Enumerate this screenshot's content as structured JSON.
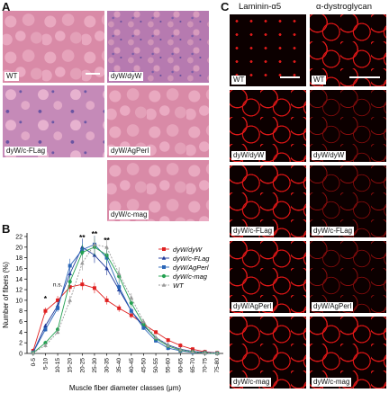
{
  "panels": {
    "A": {
      "letter": "A",
      "tiles": [
        {
          "label": "WT",
          "style": "normal"
        },
        {
          "label": "dyW/dyW",
          "style": "inflamed"
        },
        {
          "label": "dyW/c-FLag",
          "style": "fibrotic"
        },
        {
          "label": "dyW/AgPerl",
          "style": "normal"
        },
        {
          "label": "dyW/c-mag",
          "style": "normal"
        }
      ]
    },
    "B": {
      "letter": "B",
      "significance": [
        "*",
        "n.s.",
        "**",
        "**",
        "**"
      ]
    },
    "C": {
      "letter": "C",
      "col_headers": [
        "Laminin-α5",
        "α-dystroglycan"
      ],
      "rows": [
        {
          "label": "WT"
        },
        {
          "label": "dyW/dyW"
        },
        {
          "label": "dyW/c-FLag"
        },
        {
          "label": "dyW/AgPerl"
        },
        {
          "label": "dyW/c-mag"
        }
      ]
    }
  },
  "chart_data": {
    "type": "line",
    "ylabel": "Number of fibers (%)",
    "xlabel": "Muscle fiber diameter classes (μm)",
    "ylim": [
      0,
      22
    ],
    "yticks": [
      0,
      2,
      4,
      6,
      8,
      10,
      12,
      14,
      16,
      18,
      20,
      22
    ],
    "categories": [
      "0-5",
      "5-10",
      "10-15",
      "15-20",
      "20-25",
      "25-30",
      "30-35",
      "35-40",
      "40-45",
      "45-50",
      "50-55",
      "55-60",
      "60-65",
      "65-70",
      "70-75",
      "75-80"
    ],
    "legend_position": "top-right",
    "series": [
      {
        "name": "dyW/dyW",
        "color": "#e02020",
        "marker": "square",
        "values": [
          0.5,
          8.0,
          10.0,
          12.5,
          13.0,
          12.3,
          10.0,
          8.5,
          7.2,
          5.5,
          4.0,
          2.5,
          1.5,
          0.8,
          0.3,
          0.1
        ]
      },
      {
        "name": "dyW/c-FLag",
        "color": "#1f3a9a",
        "marker": "triangle",
        "values": [
          0.2,
          5.2,
          9.0,
          15.0,
          20.0,
          18.5,
          16.0,
          12.0,
          8.0,
          5.2,
          3.0,
          1.6,
          0.8,
          0.4,
          0.2,
          0.1
        ]
      },
      {
        "name": "dyW/AgPerl",
        "color": "#2a66b8",
        "marker": "square",
        "values": [
          0.2,
          4.5,
          8.5,
          16.5,
          19.5,
          20.5,
          18.0,
          12.5,
          8.0,
          4.8,
          2.4,
          1.0,
          0.5,
          0.2,
          0.1,
          0.0
        ]
      },
      {
        "name": "dyW/c-mag",
        "color": "#22a050",
        "marker": "circle",
        "values": [
          0.1,
          2.0,
          4.5,
          13.5,
          19.0,
          20.0,
          18.5,
          14.5,
          9.5,
          5.5,
          2.8,
          1.4,
          0.6,
          0.3,
          0.1,
          0.0
        ]
      },
      {
        "name": "WT",
        "color": "#9a9a9a",
        "marker": "triangle",
        "values": [
          0.1,
          1.5,
          4.0,
          10.0,
          17.0,
          20.5,
          20.0,
          15.0,
          10.5,
          6.0,
          3.0,
          1.5,
          0.7,
          0.3,
          0.1,
          0.0
        ]
      }
    ]
  }
}
